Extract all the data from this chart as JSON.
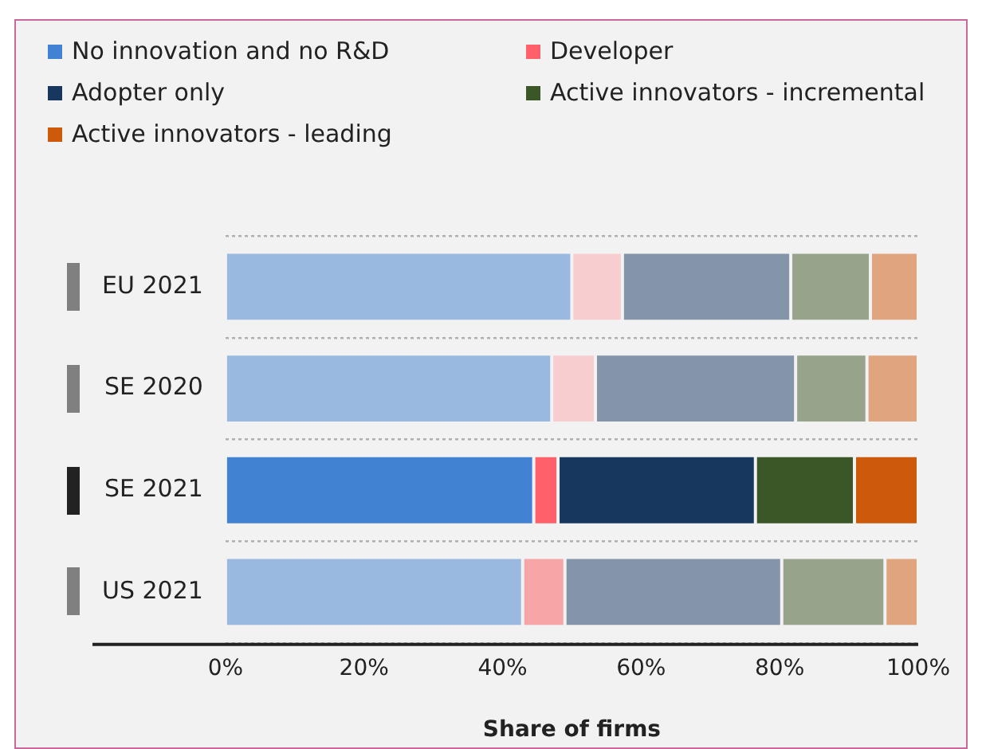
{
  "chart_data": {
    "type": "bar",
    "orientation": "horizontal",
    "stacked": true,
    "xlabel": "Share of firms",
    "categories": [
      "EU 2021",
      "SE 2020",
      "SE 2021",
      "US 2021"
    ],
    "series": [
      {
        "name": "No innovation and no R&D",
        "color": "#4282d3",
        "colors": [
          "#9ab9e0",
          "#9ab9e0",
          "#4282d3",
          "#9ab9e0"
        ],
        "values": [
          50.0,
          47.1,
          44.5,
          42.9
        ]
      },
      {
        "name": "Developer",
        "color": "#ff6069",
        "colors": [
          "#f7cdcf",
          "#f7cdcf",
          "#ff6069",
          "#f8a5a8"
        ],
        "values": [
          7.3,
          6.3,
          3.5,
          6.1
        ]
      },
      {
        "name": "Adopter only",
        "color": "#17375e",
        "colors": [
          "#8494a9",
          "#8494a9",
          "#17375e",
          "#8494a9"
        ],
        "values": [
          24.3,
          28.9,
          28.5,
          31.3
        ]
      },
      {
        "name": "Active innovators - incremental",
        "color": "#3b5627",
        "colors": [
          "#97a38a",
          "#97a38a",
          "#3b5627",
          "#97a38a"
        ],
        "values": [
          11.5,
          10.3,
          14.3,
          14.9
        ]
      },
      {
        "name": "Active innovators - leading",
        "color": "#cc5a0a",
        "colors": [
          "#e0a47e",
          "#e0a47e",
          "#cc5a0a",
          "#e0a47e"
        ],
        "values": [
          6.9,
          7.4,
          9.2,
          4.8
        ]
      }
    ],
    "xlim": [
      0,
      100
    ],
    "xticks": [
      {
        "value": 0,
        "label": "0%"
      },
      {
        "value": 20,
        "label": "20%"
      },
      {
        "value": 40,
        "label": "40%"
      },
      {
        "value": 60,
        "label": "60%"
      },
      {
        "value": 80,
        "label": "80%"
      },
      {
        "value": 100,
        "label": "100%"
      }
    ],
    "grid": "y",
    "legend": "top"
  }
}
